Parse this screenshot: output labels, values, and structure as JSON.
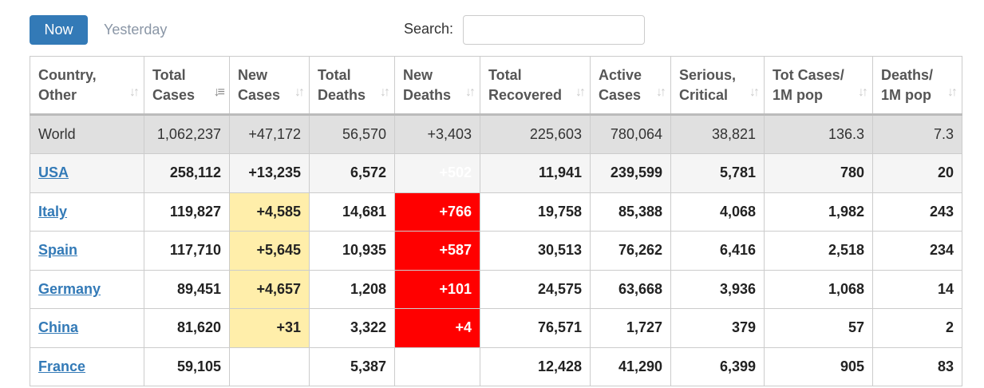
{
  "toolbar": {
    "now_label": "Now",
    "yesterday_label": "Yesterday",
    "search_label": "Search:",
    "search_value": ""
  },
  "colors": {
    "accent": "#337ab7",
    "new_cases_bg": "#ffeeaa",
    "new_deaths_bg": "#ff0000",
    "world_bg": "#e0e0e0"
  },
  "table": {
    "headers": [
      [
        "Country,",
        "Other"
      ],
      [
        "Total",
        "Cases"
      ],
      [
        "New",
        "Cases"
      ],
      [
        "Total",
        "Deaths"
      ],
      [
        "New",
        "Deaths"
      ],
      [
        "Total",
        "Recovered"
      ],
      [
        "Active",
        "Cases"
      ],
      [
        "Serious,",
        "Critical"
      ],
      [
        "Tot Cases/",
        "1M pop"
      ],
      [
        "Deaths/",
        "1M pop"
      ]
    ],
    "sort_icon": "sort-arrows-icon",
    "active_sort_column": 1,
    "world": [
      "World",
      "1,062,237",
      "+47,172",
      "56,570",
      "+3,403",
      "225,603",
      "780,064",
      "38,821",
      "136.3",
      "7.3"
    ],
    "rows": [
      [
        "USA",
        "258,112",
        "+13,235",
        "6,572",
        "+502",
        "11,941",
        "239,599",
        "5,781",
        "780",
        "20"
      ],
      [
        "Italy",
        "119,827",
        "+4,585",
        "14,681",
        "+766",
        "19,758",
        "85,388",
        "4,068",
        "1,982",
        "243"
      ],
      [
        "Spain",
        "117,710",
        "+5,645",
        "10,935",
        "+587",
        "30,513",
        "76,262",
        "6,416",
        "2,518",
        "234"
      ],
      [
        "Germany",
        "89,451",
        "+4,657",
        "1,208",
        "+101",
        "24,575",
        "63,668",
        "3,936",
        "1,068",
        "14"
      ],
      [
        "China",
        "81,620",
        "+31",
        "3,322",
        "+4",
        "76,571",
        "1,727",
        "379",
        "57",
        "2"
      ],
      [
        "France",
        "59,105",
        "",
        "5,387",
        "",
        "12,428",
        "41,290",
        "6,399",
        "905",
        "83"
      ]
    ]
  }
}
